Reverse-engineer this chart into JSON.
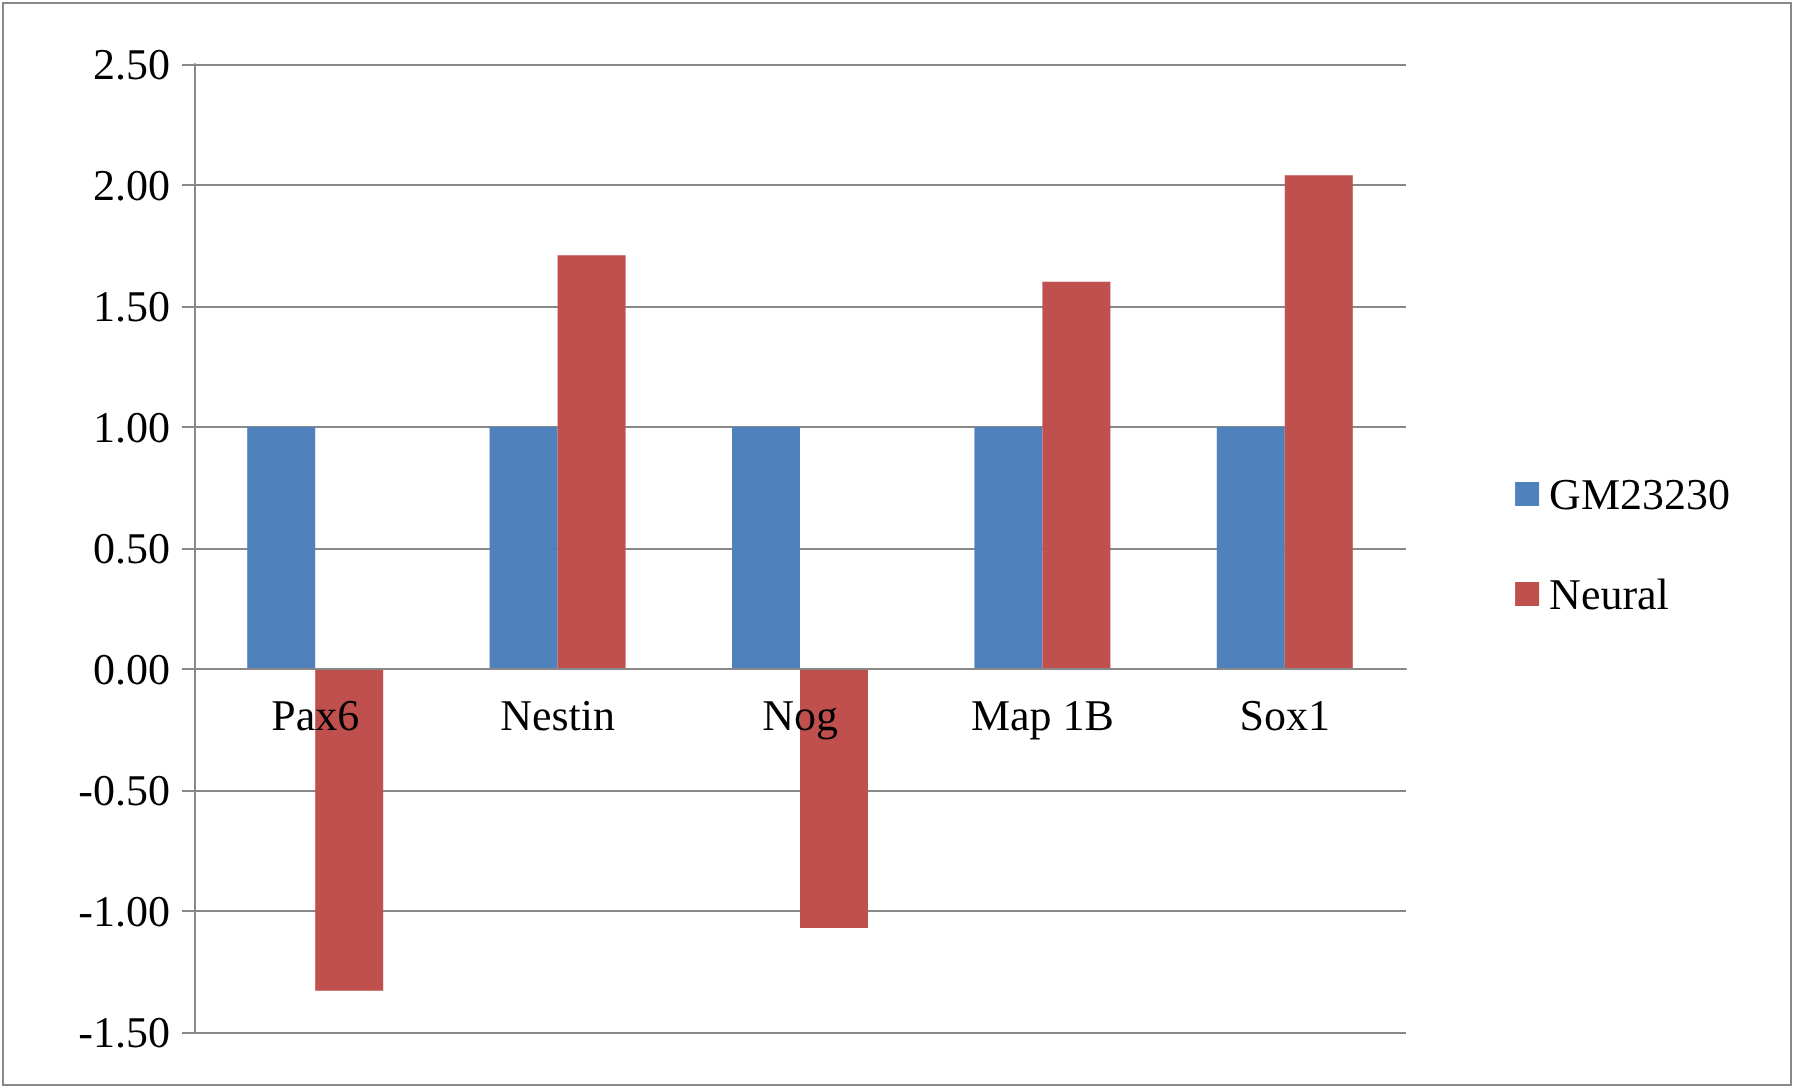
{
  "chart_data": {
    "type": "bar",
    "categories": [
      "Pax6",
      "Nestin",
      "Nog",
      "Map 1B",
      "Sox1"
    ],
    "series": [
      {
        "name": "GM23230",
        "color": "#4f81bd",
        "values": [
          1.0,
          1.0,
          1.0,
          1.0,
          1.0
        ]
      },
      {
        "name": "Neural",
        "color": "#c0504d",
        "values": [
          -1.33,
          1.71,
          -1.07,
          1.6,
          2.04
        ]
      }
    ],
    "ylim": [
      -1.5,
      2.5
    ],
    "yticks": [
      {
        "value": -1.5,
        "label": "-1.50"
      },
      {
        "value": -1,
        "label": "-1.00"
      },
      {
        "value": -0.5,
        "label": "-0.50"
      },
      {
        "value": 0,
        "label": "0.00"
      },
      {
        "value": 0.5,
        "label": "0.50"
      },
      {
        "value": 1,
        "label": "1.00"
      },
      {
        "value": 1.5,
        "label": "1.50"
      },
      {
        "value": 2,
        "label": "2.00"
      },
      {
        "value": 2.5,
        "label": "2.50"
      }
    ],
    "grid": "y",
    "legend": "right"
  }
}
